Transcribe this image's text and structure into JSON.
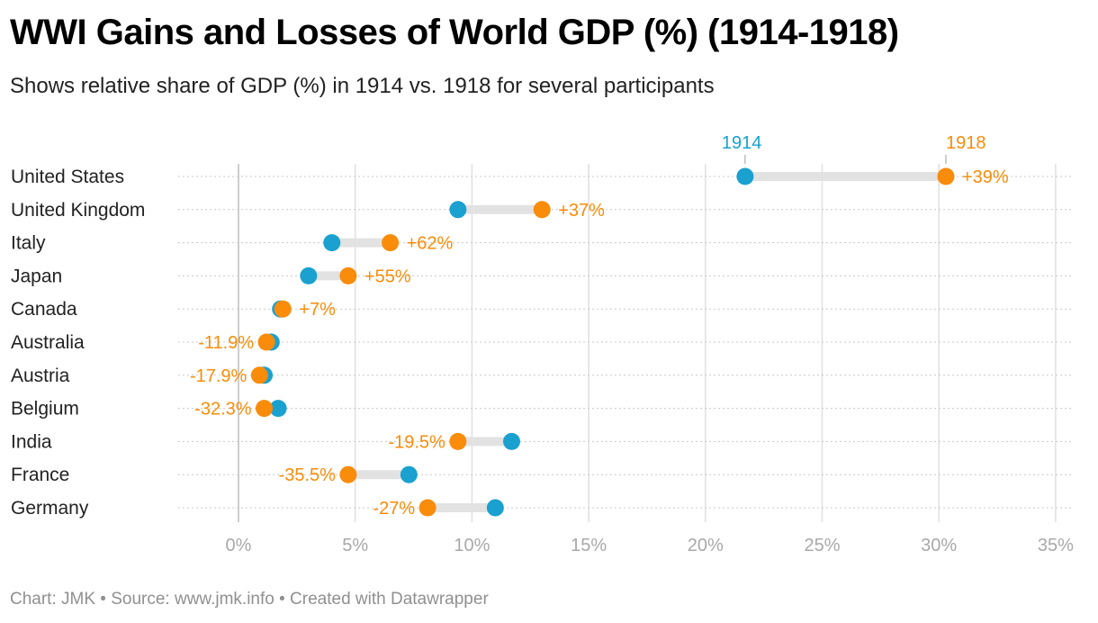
{
  "title": "WWI Gains and Losses of World GDP (%) (1914-1918)",
  "subtitle": "Shows relative share of GDP (%) in 1914 vs. 1918 for several participants",
  "footer": "Chart: JMK • Source: www.jmk.info • Created with Datawrapper",
  "colors": {
    "y1914": "#1aa1cf",
    "y1918": "#f98c0a",
    "connector": "#e2e2e2",
    "grid": "#e0e0e0",
    "zero": "#bdbdbd"
  },
  "chart_data": {
    "type": "dot-range",
    "title": "WWI Gains and Losses of World GDP (%) (1914-1918)",
    "xlabel": "",
    "ylabel": "",
    "xlim": [
      -2.5,
      35.5
    ],
    "x_ticks": [
      0,
      5,
      10,
      15,
      20,
      25,
      30,
      35
    ],
    "x_tick_labels": [
      "0%",
      "5%",
      "10%",
      "15%",
      "20%",
      "25%",
      "30%",
      "35%"
    ],
    "grid": true,
    "legend": {
      "position": "top",
      "entries": [
        "1914",
        "1918"
      ]
    },
    "categories": [
      "United States",
      "United Kingdom",
      "Italy",
      "Japan",
      "Canada",
      "Australia",
      "Austria",
      "Belgium",
      "India",
      "France",
      "Germany"
    ],
    "series": [
      {
        "name": "1914",
        "values": [
          21.7,
          9.4,
          4.0,
          3.0,
          1.8,
          1.4,
          1.1,
          1.7,
          11.7,
          7.3,
          11.0
        ]
      },
      {
        "name": "1918",
        "values": [
          30.3,
          13.0,
          6.5,
          4.7,
          1.9,
          1.2,
          0.9,
          1.1,
          9.4,
          4.7,
          8.1
        ]
      }
    ],
    "change_labels": [
      "+39%",
      "+37%",
      "+62%",
      "+55%",
      "+7%",
      "-11.9%",
      "-17.9%",
      "-32.3%",
      "-19.5%",
      "-35.5%",
      "-27%"
    ]
  }
}
